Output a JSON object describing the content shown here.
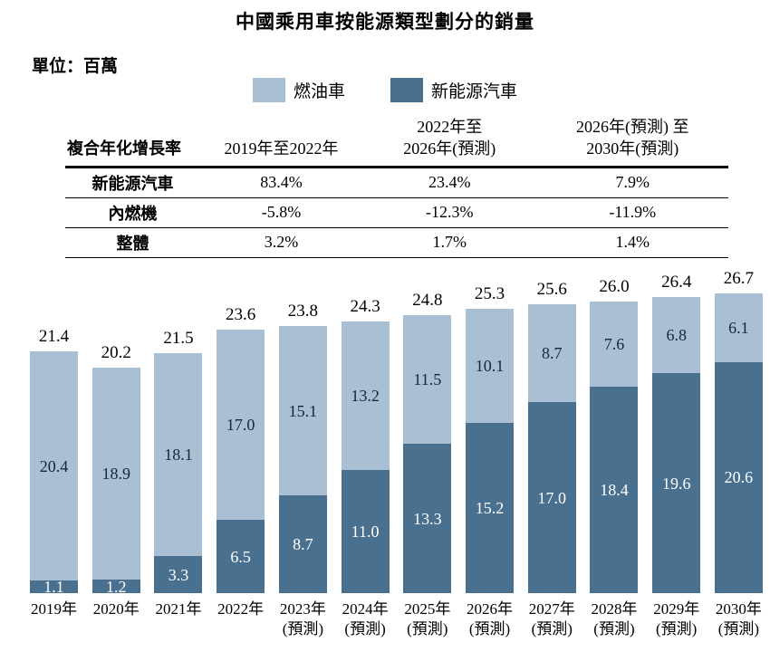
{
  "title": "中國乘用車按能源類型劃分的銷量",
  "unit_label": "單位：百萬",
  "legend": [
    {
      "label": "燃油車"
    },
    {
      "label": "新能源汽車"
    }
  ],
  "cagr_table": {
    "header": [
      "複合年化增長率",
      "2019年至2022年",
      "2022年至\n2026年(預測)",
      "2026年(預測) 至\n2030年(預測)"
    ],
    "rows": [
      {
        "label": "新能源汽車",
        "values": [
          "83.4%",
          "23.4%",
          "7.9%"
        ]
      },
      {
        "label": "內燃機",
        "values": [
          "-5.8%",
          "-12.3%",
          "-11.9%"
        ]
      },
      {
        "label": "整體",
        "values": [
          "3.2%",
          "1.7%",
          "1.4%"
        ]
      }
    ]
  },
  "chart_data": {
    "type": "bar",
    "stacked": true,
    "title": "中國乘用車按能源類型劃分的銷量",
    "ylabel": "百萬",
    "ylim": [
      0,
      27
    ],
    "legend_position": "top",
    "categories": [
      "2019年",
      "2020年",
      "2021年",
      "2022年",
      "2023年\n(預測)",
      "2024年\n(預測)",
      "2025年\n(預測)",
      "2026年\n(預測)",
      "2027年\n(預測)",
      "2028年\n(預測)",
      "2029年\n(預測)",
      "2030年\n(預測)"
    ],
    "series": [
      {
        "name": "燃油車",
        "color": "#a9c0d4",
        "values": [
          20.4,
          18.9,
          18.1,
          17.0,
          15.1,
          13.2,
          11.5,
          10.1,
          8.7,
          7.6,
          6.8,
          6.1
        ]
      },
      {
        "name": "新能源汽車",
        "color": "#4a7090",
        "values": [
          1.1,
          1.2,
          3.3,
          6.5,
          8.7,
          11.0,
          13.3,
          15.2,
          17.0,
          18.4,
          19.6,
          20.6
        ]
      }
    ],
    "totals": [
      21.4,
      20.2,
      21.5,
      23.6,
      23.8,
      24.3,
      24.8,
      25.3,
      25.6,
      26.0,
      26.4,
      26.7
    ]
  }
}
